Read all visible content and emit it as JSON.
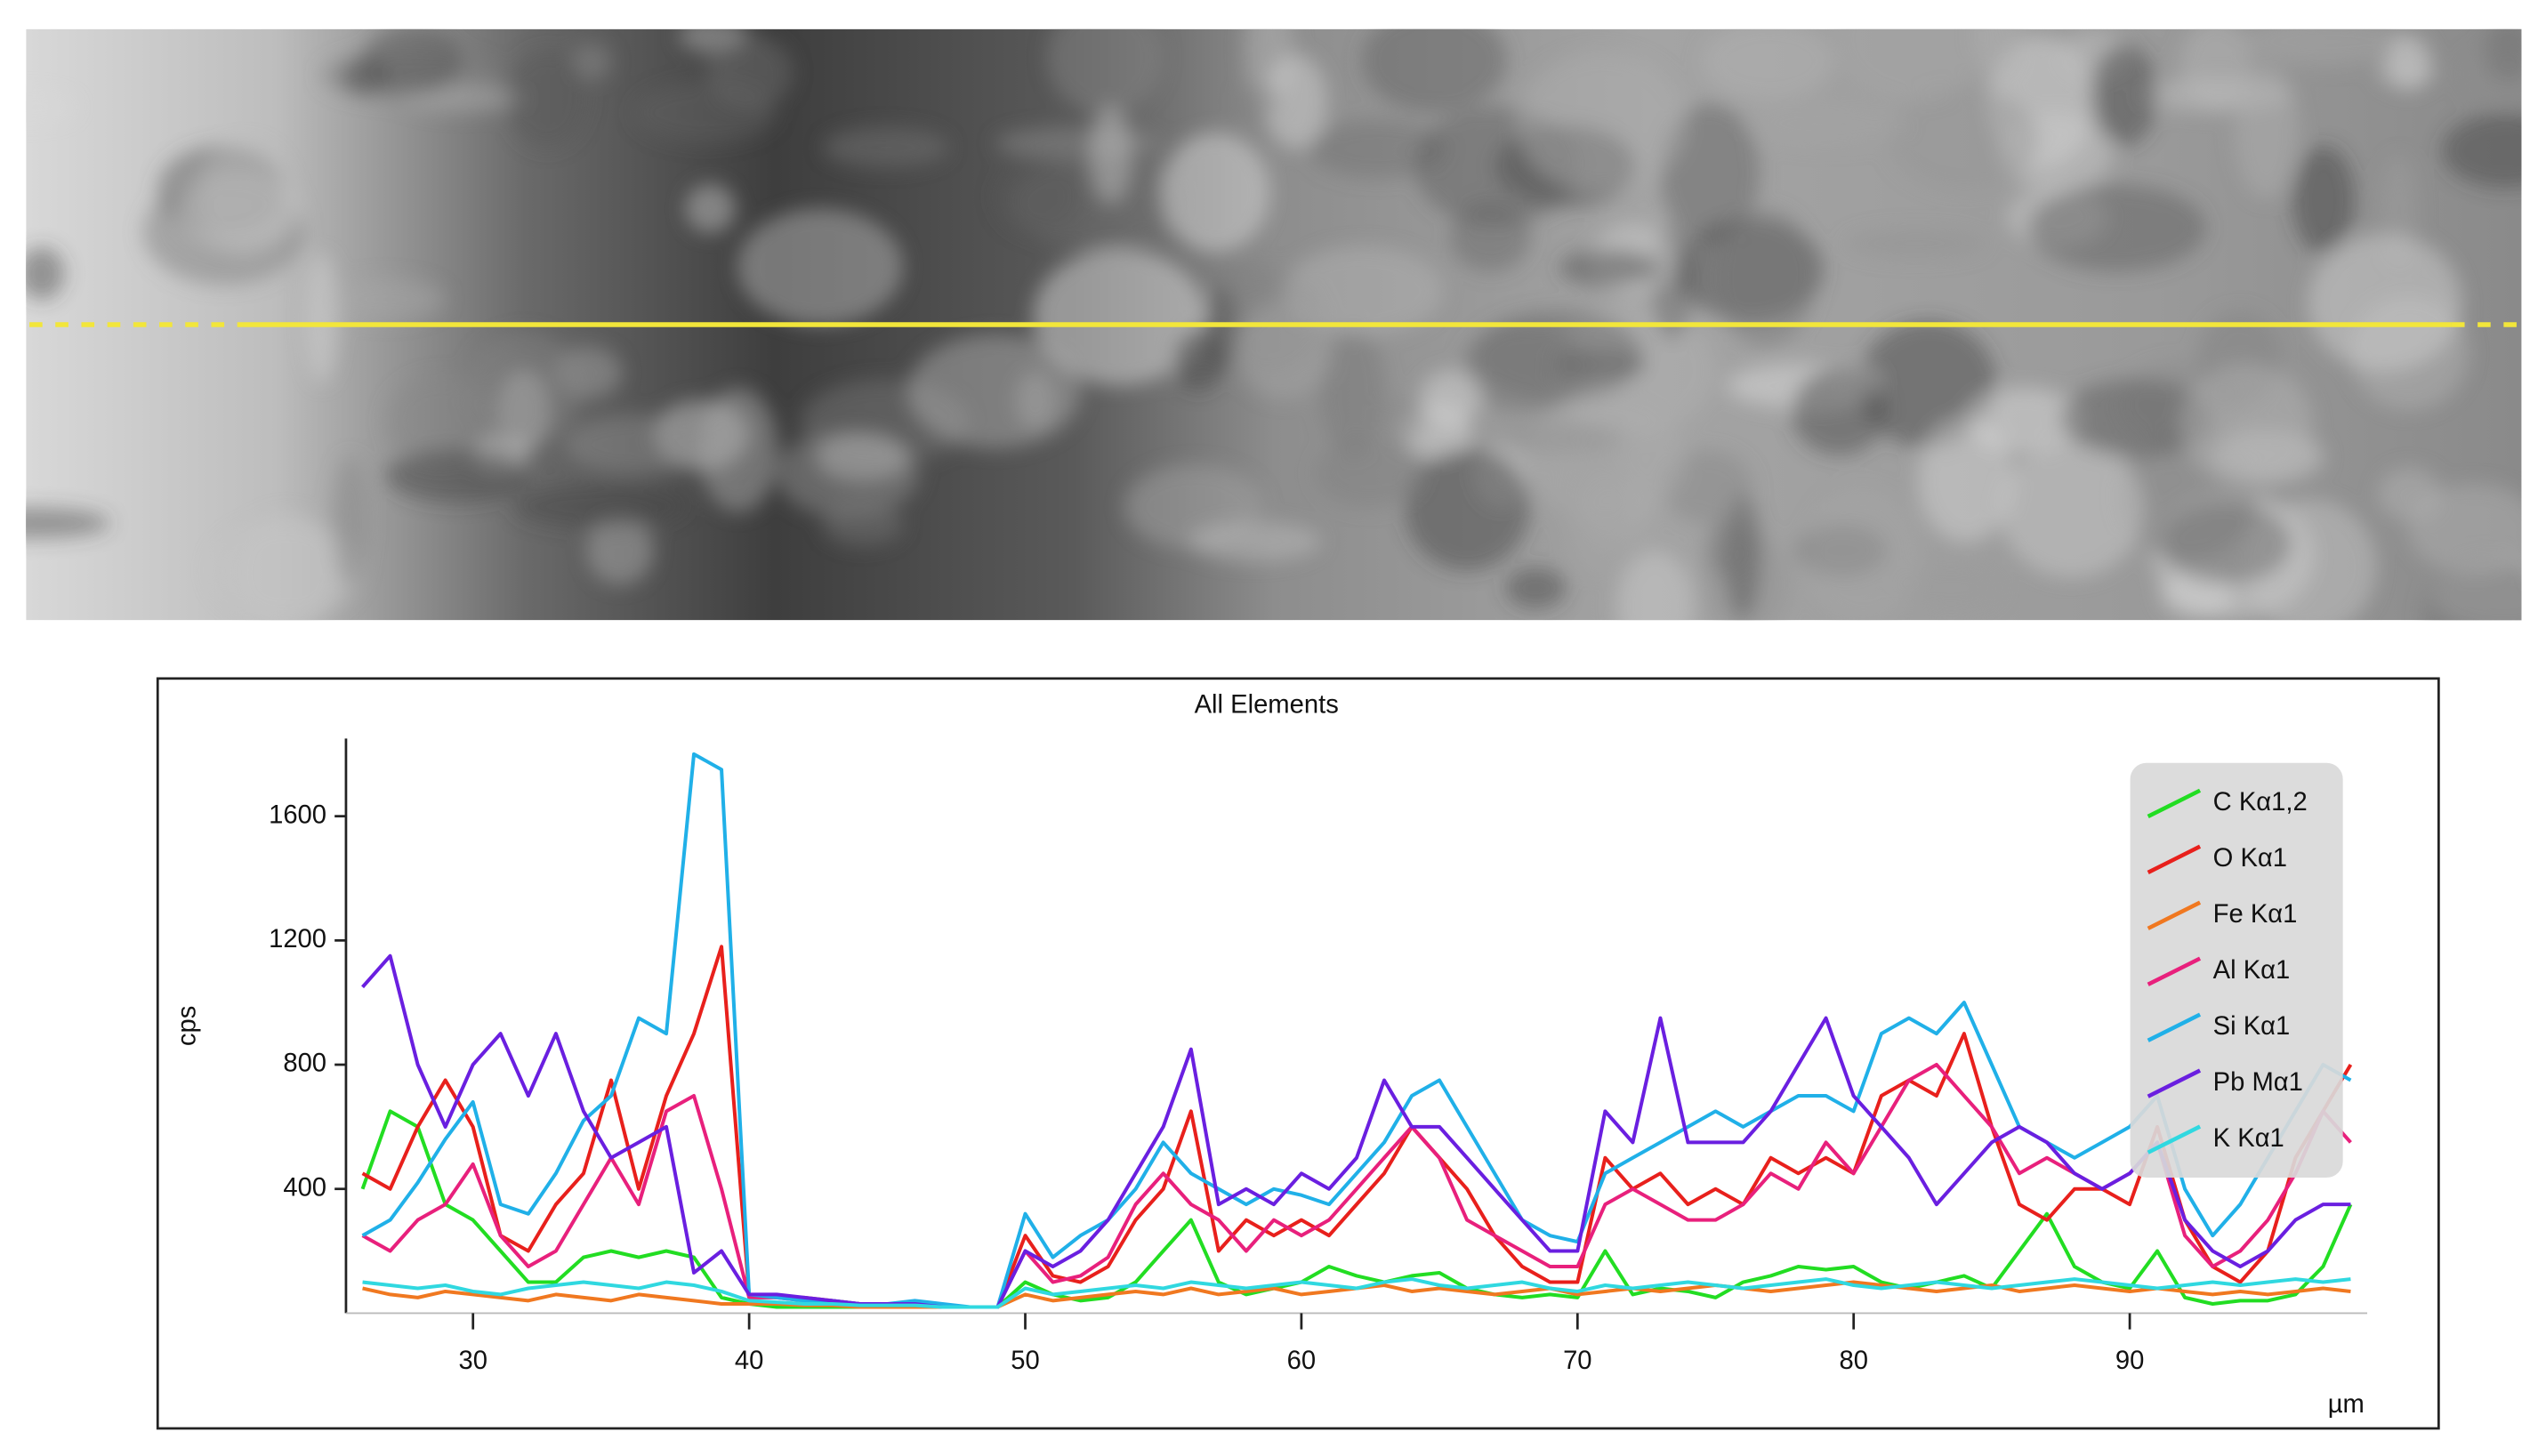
{
  "chart_data": {
    "type": "line",
    "title": "All Elements",
    "y_label": "cps",
    "x_label": "µm",
    "xlim": [
      25.4,
      98.6
    ],
    "ylim": [
      0,
      1850
    ],
    "xticks": [
      30,
      40,
      50,
      60,
      70,
      80,
      90
    ],
    "yticks": [
      400,
      800,
      1200,
      1600
    ],
    "legend": "top-right",
    "x": [
      26,
      27,
      28,
      29,
      30,
      31,
      32,
      33,
      34,
      35,
      36,
      37,
      38,
      39,
      40,
      41,
      42,
      43,
      44,
      45,
      46,
      47,
      48,
      49,
      50,
      51,
      52,
      53,
      54,
      55,
      56,
      57,
      58,
      59,
      60,
      61,
      62,
      63,
      64,
      65,
      66,
      67,
      68,
      69,
      70,
      71,
      72,
      73,
      74,
      75,
      76,
      77,
      78,
      79,
      80,
      81,
      82,
      83,
      84,
      85,
      86,
      87,
      88,
      89,
      90,
      91,
      92,
      93,
      94,
      95,
      96,
      97,
      98
    ],
    "series": [
      {
        "name": "C Kα1,2",
        "color": "#22dd22",
        "values": [
          400,
          650,
          600,
          350,
          300,
          200,
          100,
          100,
          180,
          200,
          180,
          200,
          180,
          50,
          30,
          20,
          20,
          20,
          20,
          20,
          20,
          20,
          20,
          20,
          100,
          60,
          40,
          50,
          100,
          200,
          300,
          100,
          60,
          80,
          100,
          150,
          120,
          100,
          120,
          130,
          80,
          60,
          50,
          60,
          50,
          200,
          60,
          80,
          70,
          50,
          100,
          120,
          150,
          140,
          150,
          100,
          80,
          100,
          120,
          80,
          200,
          320,
          150,
          100,
          80,
          200,
          50,
          30,
          40,
          40,
          60,
          150,
          350
        ]
      },
      {
        "name": "O Kα1",
        "color": "#e8201c",
        "values": [
          450,
          400,
          600,
          750,
          600,
          250,
          200,
          350,
          450,
          750,
          400,
          700,
          900,
          1180,
          60,
          50,
          50,
          40,
          30,
          30,
          30,
          20,
          20,
          20,
          250,
          120,
          100,
          150,
          300,
          400,
          650,
          200,
          300,
          250,
          300,
          250,
          350,
          450,
          600,
          500,
          400,
          250,
          150,
          100,
          100,
          500,
          400,
          450,
          350,
          400,
          350,
          500,
          450,
          500,
          450,
          700,
          750,
          700,
          900,
          600,
          350,
          300,
          400,
          400,
          350,
          600,
          300,
          150,
          100,
          200,
          500,
          650,
          800
        ]
      },
      {
        "name": "Fe Kα1",
        "color": "#f07820",
        "values": [
          80,
          60,
          50,
          70,
          60,
          50,
          40,
          60,
          50,
          40,
          60,
          50,
          40,
          30,
          30,
          30,
          25,
          25,
          20,
          20,
          20,
          20,
          20,
          20,
          60,
          40,
          50,
          60,
          70,
          60,
          80,
          60,
          70,
          80,
          60,
          70,
          80,
          90,
          70,
          80,
          70,
          60,
          70,
          80,
          60,
          70,
          80,
          70,
          80,
          90,
          80,
          70,
          80,
          90,
          100,
          90,
          80,
          70,
          80,
          90,
          70,
          80,
          90,
          80,
          70,
          80,
          70,
          60,
          70,
          60,
          70,
          80,
          70
        ]
      },
      {
        "name": "Al Kα1",
        "color": "#e8207c",
        "values": [
          250,
          200,
          300,
          350,
          480,
          250,
          150,
          200,
          350,
          500,
          350,
          650,
          700,
          400,
          50,
          50,
          40,
          40,
          30,
          30,
          30,
          20,
          20,
          20,
          200,
          100,
          120,
          180,
          350,
          450,
          350,
          300,
          200,
          300,
          250,
          300,
          400,
          500,
          600,
          500,
          300,
          250,
          200,
          150,
          150,
          350,
          400,
          350,
          300,
          300,
          350,
          450,
          400,
          550,
          450,
          600,
          750,
          800,
          700,
          600,
          450,
          500,
          450,
          400,
          450,
          550,
          250,
          150,
          200,
          300,
          450,
          650,
          550
        ]
      },
      {
        "name": "Si Kα1",
        "color": "#20b0e8",
        "values": [
          250,
          300,
          420,
          560,
          680,
          350,
          320,
          450,
          620,
          700,
          950,
          900,
          1800,
          1750,
          60,
          50,
          40,
          40,
          30,
          30,
          40,
          30,
          20,
          20,
          320,
          180,
          250,
          300,
          400,
          550,
          450,
          400,
          350,
          400,
          380,
          350,
          450,
          550,
          700,
          750,
          600,
          450,
          300,
          250,
          230,
          450,
          500,
          550,
          600,
          650,
          600,
          650,
          700,
          700,
          650,
          900,
          950,
          900,
          1000,
          800,
          600,
          550,
          500,
          550,
          600,
          700,
          400,
          250,
          350,
          500,
          650,
          800,
          750
        ]
      },
      {
        "name": "Pb Mα1",
        "color": "#6a1fe0",
        "values": [
          1050,
          1150,
          800,
          600,
          800,
          900,
          700,
          900,
          650,
          500,
          550,
          600,
          130,
          200,
          60,
          60,
          50,
          40,
          30,
          30,
          30,
          20,
          20,
          20,
          200,
          150,
          200,
          300,
          450,
          600,
          850,
          350,
          400,
          350,
          450,
          400,
          500,
          750,
          600,
          600,
          500,
          400,
          300,
          200,
          200,
          650,
          550,
          950,
          550,
          550,
          550,
          650,
          800,
          950,
          700,
          600,
          500,
          350,
          450,
          550,
          600,
          550,
          450,
          400,
          450,
          550,
          300,
          200,
          150,
          200,
          300,
          350,
          350
        ]
      },
      {
        "name": "K Kα1",
        "color": "#30d8e0",
        "values": [
          100,
          90,
          80,
          90,
          70,
          60,
          80,
          90,
          100,
          90,
          80,
          100,
          90,
          70,
          40,
          35,
          30,
          30,
          25,
          25,
          25,
          20,
          20,
          20,
          80,
          60,
          70,
          80,
          90,
          80,
          100,
          90,
          80,
          90,
          100,
          90,
          80,
          100,
          110,
          90,
          80,
          90,
          100,
          80,
          70,
          90,
          80,
          90,
          100,
          90,
          80,
          90,
          100,
          110,
          90,
          80,
          90,
          100,
          90,
          80,
          90,
          100,
          110,
          100,
          90,
          80,
          90,
          100,
          90,
          100,
          110,
          100,
          110
        ]
      }
    ]
  }
}
